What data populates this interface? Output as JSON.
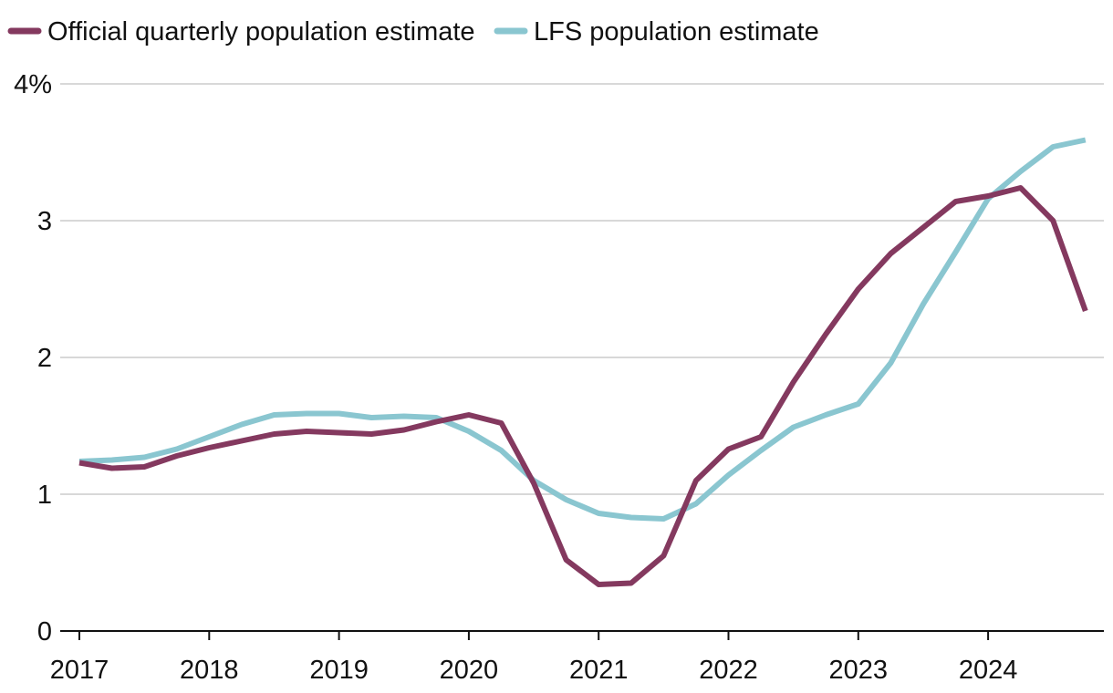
{
  "chart_data": {
    "type": "line",
    "title": "",
    "xlabel": "",
    "ylabel": "",
    "x_ticks": [
      "2017",
      "2018",
      "2019",
      "2020",
      "2021",
      "2022",
      "2023",
      "2024"
    ],
    "y_ticks": [
      "0",
      "1",
      "2",
      "3",
      "4%"
    ],
    "y_tick_values": [
      0,
      1,
      2,
      3,
      4
    ],
    "ylim": [
      0,
      4
    ],
    "xlim": [
      2017.0,
      2024.9
    ],
    "grid": true,
    "legend_position": "top-left",
    "series": [
      {
        "name": "Official quarterly population estimate",
        "color": "#84395f",
        "x": [
          2017.0,
          2017.25,
          2017.5,
          2017.75,
          2018.0,
          2018.25,
          2018.5,
          2018.75,
          2019.0,
          2019.25,
          2019.5,
          2019.75,
          2020.0,
          2020.25,
          2020.5,
          2020.75,
          2021.0,
          2021.25,
          2021.5,
          2021.75,
          2022.0,
          2022.25,
          2022.5,
          2022.75,
          2023.0,
          2023.25,
          2023.5,
          2023.75,
          2024.0,
          2024.25,
          2024.5,
          2024.75
        ],
        "values": [
          1.23,
          1.19,
          1.2,
          1.28,
          1.34,
          1.39,
          1.44,
          1.46,
          1.45,
          1.44,
          1.47,
          1.53,
          1.58,
          1.52,
          1.08,
          0.52,
          0.34,
          0.35,
          0.55,
          1.1,
          1.33,
          1.42,
          1.82,
          2.17,
          2.5,
          2.76,
          2.95,
          3.14,
          3.18,
          3.24,
          3.0,
          2.34
        ]
      },
      {
        "name": "LFS population estimate",
        "color": "#8ac6d0",
        "x": [
          2017.0,
          2017.25,
          2017.5,
          2017.75,
          2018.0,
          2018.25,
          2018.5,
          2018.75,
          2019.0,
          2019.25,
          2019.5,
          2019.75,
          2020.0,
          2020.25,
          2020.5,
          2020.75,
          2021.0,
          2021.25,
          2021.5,
          2021.75,
          2022.0,
          2022.25,
          2022.5,
          2022.75,
          2023.0,
          2023.25,
          2023.5,
          2023.75,
          2024.0,
          2024.25,
          2024.5,
          2024.75
        ],
        "values": [
          1.24,
          1.25,
          1.27,
          1.33,
          1.42,
          1.51,
          1.58,
          1.59,
          1.59,
          1.56,
          1.57,
          1.56,
          1.46,
          1.32,
          1.1,
          0.96,
          0.86,
          0.83,
          0.82,
          0.93,
          1.14,
          1.32,
          1.49,
          1.58,
          1.66,
          1.96,
          2.39,
          2.77,
          3.16,
          3.36,
          3.54,
          3.59
        ]
      }
    ]
  }
}
